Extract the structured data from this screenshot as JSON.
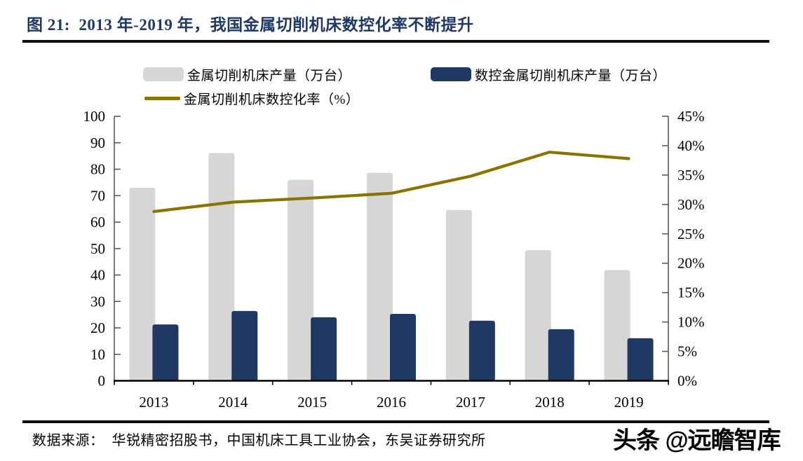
{
  "header": {
    "title": "图 21:  2013 年-2019 年，我国金属切削机床数控化率不断提升"
  },
  "chart_data": {
    "type": "combo",
    "title": "图 21: 2013 年-2019 年，我国金属切削机床数控化率不断提升",
    "categories": [
      "2013",
      "2014",
      "2015",
      "2016",
      "2017",
      "2018",
      "2019"
    ],
    "series": [
      {
        "name": "金属切削机床产量（万台）",
        "type": "bar",
        "axis": "left",
        "color": "#D6D6D6",
        "values": [
          73.0,
          86.1,
          76.0,
          78.6,
          64.6,
          49.4,
          41.9
        ]
      },
      {
        "name": "数控金属切削机床产量（万台）",
        "type": "bar",
        "axis": "left",
        "color": "#1F3864",
        "values": [
          21.3,
          26.4,
          24.0,
          25.3,
          22.7,
          19.5,
          16.1
        ]
      },
      {
        "name": "金属切削机床数控化率（%）",
        "type": "line",
        "axis": "right",
        "color": "#8B7300",
        "values": [
          28.8,
          30.4,
          31.1,
          31.9,
          34.8,
          38.9,
          37.8
        ]
      }
    ],
    "left_axis": {
      "min": 0,
      "max": 100,
      "step": 10,
      "suffix": ""
    },
    "right_axis": {
      "min": 0,
      "max": 45,
      "step": 5,
      "suffix": "%"
    },
    "legend_position": "top",
    "grid": false
  },
  "footer": {
    "source": "数据来源：  华锐精密招股书，中国机床工具工业协会，东吴证券研究所",
    "watermark": "头条 @远瞻智库"
  },
  "palette": {
    "title_color": "#1F3864",
    "rule_color": "#111111",
    "axis_color": "#595959",
    "axis_bottom_color": "#000000",
    "text_color": "#000000"
  }
}
